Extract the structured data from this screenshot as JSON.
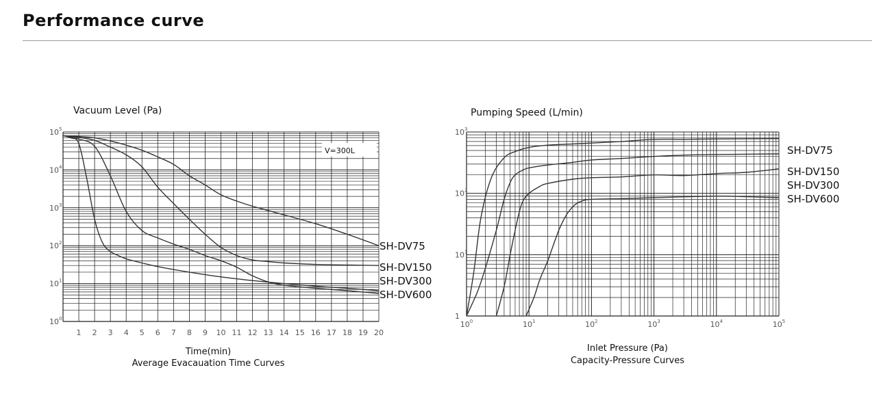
{
  "page": {
    "title": "Performance curve"
  },
  "colors": {
    "grid": "#222222",
    "curve": "#333333",
    "rule": "#9a9a9a"
  },
  "chart_data": [
    {
      "type": "line",
      "ylabel": "Vacuum Level (Pa)",
      "xlabel": "Time(min)",
      "caption": "Average Evacauation Time Curves",
      "annotation": "V=300L",
      "y_scale": "log",
      "ylim": [
        1,
        100000
      ],
      "xlim": [
        0,
        20
      ],
      "x_ticks": [
        "1",
        "2",
        "3",
        "4",
        "5",
        "6",
        "7",
        "8",
        "9",
        "10",
        "11",
        "12",
        "13",
        "14",
        "15",
        "16",
        "17",
        "18",
        "19",
        "20"
      ],
      "y_ticks": [
        {
          "base": "10",
          "exp": "5"
        },
        {
          "base": "10",
          "exp": "4"
        },
        {
          "base": "10",
          "exp": "3"
        },
        {
          "base": "10",
          "exp": "2"
        },
        {
          "base": "10",
          "exp": "1"
        },
        {
          "base": "10",
          "exp": "0"
        }
      ],
      "grid": true,
      "series": [
        {
          "name": "SH-DV75",
          "x": [
            0,
            1,
            2,
            3,
            4,
            5,
            6,
            7,
            8,
            9,
            10,
            11,
            12,
            14,
            16,
            18,
            20
          ],
          "y": [
            80000,
            76000,
            70000,
            58000,
            45000,
            33000,
            22000,
            14000,
            7000,
            4000,
            2200,
            1500,
            1100,
            650,
            380,
            200,
            100
          ]
        },
        {
          "name": "SH-DV150",
          "x": [
            0,
            1,
            2,
            3,
            4,
            5,
            6,
            7,
            8,
            9,
            10,
            11,
            12,
            13,
            14,
            16,
            18,
            20
          ],
          "y": [
            80000,
            72000,
            60000,
            40000,
            25000,
            12000,
            3500,
            1300,
            500,
            200,
            90,
            55,
            42,
            38,
            35,
            32,
            31,
            30
          ]
        },
        {
          "name": "SH-DV300",
          "x": [
            0,
            1,
            2,
            3,
            4,
            5,
            6,
            7,
            8,
            9,
            10,
            11,
            12,
            13,
            14,
            16,
            18,
            20
          ],
          "y": [
            80000,
            65000,
            42000,
            7000,
            800,
            250,
            160,
            110,
            80,
            55,
            40,
            27,
            16,
            11,
            9,
            7.5,
            6.5,
            5.5
          ]
        },
        {
          "name": "SH-DV600",
          "x": [
            0,
            0.5,
            1,
            1.5,
            2,
            2.5,
            3,
            3.5,
            4,
            5,
            6,
            8,
            10,
            12,
            14,
            16,
            18,
            20
          ],
          "y": [
            80000,
            70000,
            50000,
            6000,
            500,
            120,
            70,
            55,
            45,
            35,
            28,
            20,
            15,
            12,
            10,
            8.5,
            7.5,
            6.5
          ]
        }
      ]
    },
    {
      "type": "line",
      "ylabel": "Pumping Speed (L/min)",
      "xlabel": "Inlet Pressure (Pa)",
      "caption": "Capacity-Pressure Curves",
      "x_scale": "log",
      "y_scale": "log",
      "xlim": [
        1,
        100000
      ],
      "ylim": [
        1,
        1000
      ],
      "x_ticks": [
        {
          "base": "10",
          "exp": "0"
        },
        {
          "base": "10",
          "exp": "1"
        },
        {
          "base": "10",
          "exp": "2"
        },
        {
          "base": "10",
          "exp": "3"
        },
        {
          "base": "10",
          "exp": "4"
        },
        {
          "base": "10",
          "exp": "5"
        }
      ],
      "y_ticks": [
        {
          "base": "10",
          "exp": "3"
        },
        {
          "base": "10",
          "exp": "2"
        },
        {
          "base": "10",
          "exp": "1"
        },
        {
          "base": "1",
          "exp": ""
        }
      ],
      "grid": true,
      "series": [
        {
          "name": "SH-DV75",
          "x": [
            1,
            1.3,
            1.7,
            2.5,
            4,
            6,
            10,
            20,
            50,
            100,
            300,
            1000,
            3000,
            10000,
            100000
          ],
          "y": [
            1,
            5,
            40,
            180,
            380,
            480,
            560,
            610,
            640,
            660,
            700,
            760,
            760,
            770,
            780
          ]
        },
        {
          "name": "SH-DV150",
          "x": [
            1,
            1.5,
            2,
            3,
            4,
            5,
            6,
            8,
            10,
            20,
            50,
            100,
            300,
            1000,
            3000,
            10000,
            100000
          ],
          "y": [
            1,
            2.5,
            6,
            25,
            80,
            150,
            200,
            240,
            260,
            290,
            320,
            350,
            370,
            400,
            420,
            430,
            440
          ]
        },
        {
          "name": "SH-DV300",
          "x": [
            3,
            4,
            5,
            6,
            7,
            8,
            10,
            15,
            20,
            50,
            100,
            300,
            1000,
            3000,
            10000,
            30000,
            100000
          ],
          "y": [
            1,
            3,
            10,
            25,
            50,
            75,
            100,
            130,
            145,
            170,
            180,
            185,
            200,
            195,
            210,
            220,
            250
          ]
        },
        {
          "name": "SH-DV600",
          "x": [
            9,
            12,
            15,
            20,
            30,
            40,
            50,
            60,
            80,
            100,
            300,
            1000,
            10000,
            30000,
            100000
          ],
          "y": [
            1,
            2,
            4,
            8,
            25,
            45,
            60,
            70,
            78,
            80,
            82,
            85,
            90,
            88,
            85
          ]
        }
      ]
    }
  ]
}
